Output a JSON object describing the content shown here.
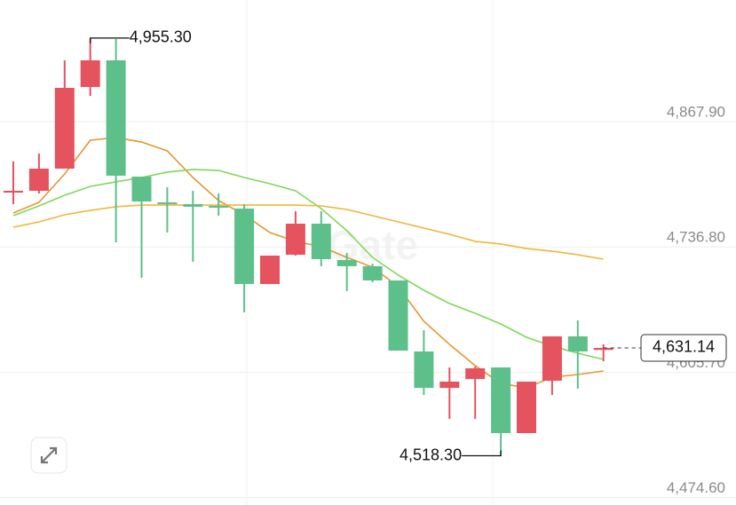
{
  "chart_data": {
    "type": "candlestick",
    "watermark": "Gate",
    "up_color": "#e5535f",
    "down_color": "#5dbf8a",
    "open": [
      4793.6,
      4795.5,
      4818.7,
      4904.1,
      4932.0,
      4810.3,
      4783.4,
      4781.5,
      4779.7,
      4776.9,
      4698.0,
      4728.6,
      4761.1,
      4723.1,
      4716.6,
      4701.7,
      4627.4,
      4589.3,
      4598.6,
      4610.7,
      4542.0,
      4596.8,
      4643.2,
      4629.0
    ],
    "high": [
      4826.1,
      4834.5,
      4932.0,
      4955.3,
      4954.3,
      4810.3,
      4799.2,
      4795.5,
      4792.7,
      4781.5,
      4727.7,
      4774.1,
      4774.1,
      4730.5,
      4719.3,
      4701.7,
      4649.7,
      4610.7,
      4611.6,
      4610.7,
      4595.9,
      4643.2,
      4659.9,
      4634.9
    ],
    "low": [
      4781.5,
      4792.7,
      4818.7,
      4894.8,
      4741.6,
      4704.5,
      4751.8,
      4721.2,
      4769.5,
      4668.3,
      4698.0,
      4727.7,
      4716.6,
      4690.6,
      4699.8,
      4628.3,
      4581.9,
      4556.9,
      4556.9,
      4518.3,
      4542.0,
      4581.9,
      4588.4,
      4617.2
    ],
    "close": [
      4795.5,
      4818.7,
      4903.2,
      4932.0,
      4811.3,
      4784.3,
      4781.5,
      4778.8,
      4777.8,
      4698.0,
      4727.7,
      4761.1,
      4724.0,
      4716.6,
      4701.7,
      4628.3,
      4589.3,
      4595.9,
      4609.8,
      4542.0,
      4595.9,
      4643.2,
      4627.4,
      4631.14
    ],
    "lines": [
      {
        "color": "#e6962e",
        "values": [
          4772.3,
          4783.4,
          4813.1,
          4848.4,
          4851.2,
          4846.5,
          4837.3,
          4809.4,
          4785.3,
          4770.4,
          4751.8,
          4742.6,
          4737.0,
          4725.8,
          4715.6,
          4695.2,
          4659.0,
          4634.8,
          4612.6,
          4594.0,
          4589.3,
          4600.5,
          4603.3,
          4607.0
        ]
      },
      {
        "color": "#7fd85a",
        "values": [
          4769.5,
          4779.7,
          4790.8,
          4800.1,
          4804.8,
          4809.4,
          4815.0,
          4817.8,
          4816.8,
          4809.4,
          4802.9,
          4795.5,
          4776.9,
          4753.7,
          4725.8,
          4707.3,
          4691.5,
          4677.6,
          4667.3,
          4656.2,
          4642.3,
          4633.0,
          4625.6,
          4619.1
        ]
      },
      {
        "color": "#f0b63a",
        "values": [
          4757.4,
          4763.0,
          4770.4,
          4775.0,
          4778.8,
          4780.6,
          4780.6,
          4780.6,
          4780.6,
          4780.6,
          4780.6,
          4780.6,
          4779.7,
          4776.0,
          4769.5,
          4763.0,
          4756.5,
          4750.0,
          4742.6,
          4739.8,
          4735.1,
          4732.3,
          4728.6,
          4724.0
        ]
      }
    ],
    "high_label": "4,955.30",
    "low_label": "4,518.30",
    "last_label": "4,631.14",
    "ylim": [
      4466.8,
      4995.1
    ],
    "yticks": [
      {
        "value": 4867.9,
        "label": "4,867.90"
      },
      {
        "value": 4736.8,
        "label": "4,736.80"
      },
      {
        "value": 4605.7,
        "label": "4,605.70"
      },
      {
        "value": 4474.6,
        "label": "4,474.60"
      }
    ],
    "grid": true
  }
}
